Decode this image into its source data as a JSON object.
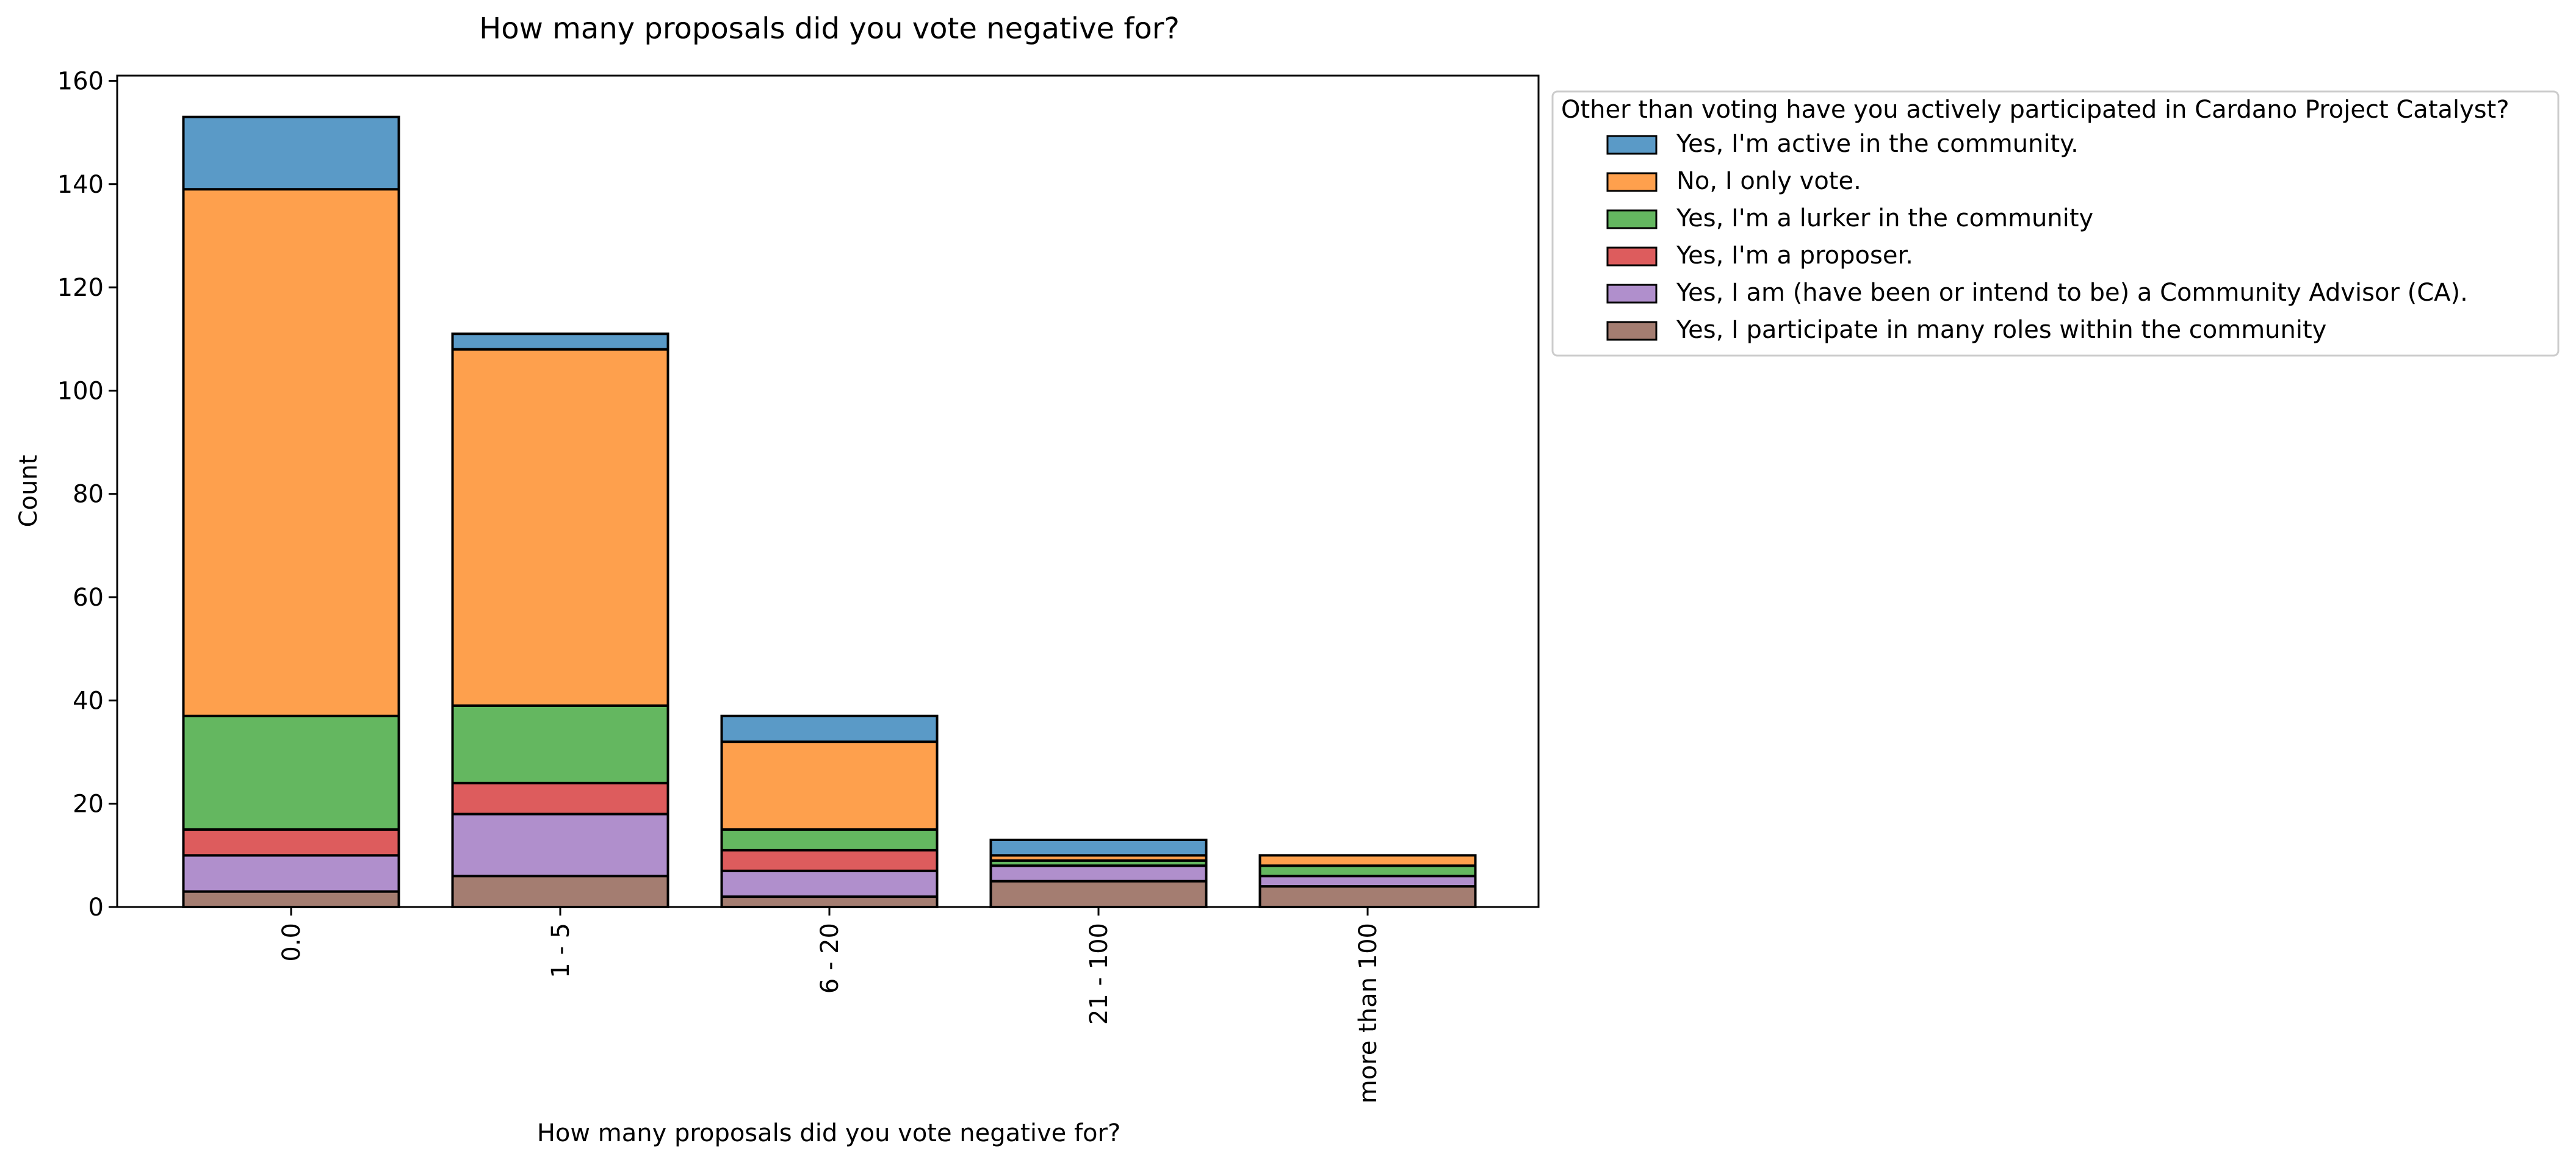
{
  "chart_data": {
    "type": "bar",
    "stacked": true,
    "title": "How many proposals did you vote negative for?",
    "xlabel": "How many proposals did you vote negative for?",
    "ylabel": "Count",
    "categories": [
      "0.0",
      "1 - 5",
      "6 - 20",
      "21 - 100",
      "more than 100"
    ],
    "ylim": [
      0,
      161
    ],
    "yticks": [
      0,
      20,
      40,
      60,
      80,
      100,
      120,
      140,
      160
    ],
    "grid": false,
    "legend": {
      "title": "Other than voting have you actively participated in Cardano Project Catalyst?",
      "placement": "outside-upper-right"
    },
    "series": [
      {
        "name": "Yes, I participate in many roles within the community",
        "color": "#a47d71",
        "values": [
          3,
          6,
          2,
          5,
          4
        ]
      },
      {
        "name": "Yes, I am (have been or intend to be) a Community Advisor (CA).",
        "color": "#b08fcc",
        "values": [
          7,
          12,
          5,
          3,
          2
        ]
      },
      {
        "name": "Yes, I'm a proposer.",
        "color": "#dd5c5d",
        "values": [
          5,
          6,
          4,
          0,
          0
        ]
      },
      {
        "name": "Yes, I'm a lurker in the community",
        "color": "#64b760",
        "values": [
          22,
          15,
          4,
          1,
          2
        ]
      },
      {
        "name": "No, I only vote.",
        "color": "#fea04d",
        "values": [
          102,
          69,
          17,
          1,
          2
        ]
      },
      {
        "name": "Yes, I'm active in the community.",
        "color": "#5a9ac7",
        "values": [
          14,
          3,
          5,
          3,
          0
        ]
      }
    ],
    "legend_order": [
      5,
      4,
      3,
      2,
      1,
      0
    ]
  }
}
